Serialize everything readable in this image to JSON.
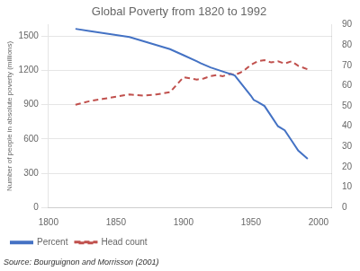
{
  "chart_data": {
    "type": "line",
    "title": "Global Poverty from 1820 to 1992",
    "y_label": "Number of people in absolute poverty (millions)",
    "annotations": [
      "Source: Bourguignon and Morrisson (2001)"
    ],
    "xlim": [
      1800,
      2010
    ],
    "xticks": [
      1800,
      1850,
      1900,
      1950,
      2000
    ],
    "ylim": [
      0,
      1600
    ],
    "yticks": [
      0,
      300,
      600,
      900,
      1200,
      1500
    ],
    "y2lim": [
      0,
      90
    ],
    "y2ticks": [
      0,
      10,
      20,
      30,
      40,
      50,
      60,
      70,
      80,
      90
    ],
    "grid": "y",
    "legend": "lower left",
    "series": [
      {
        "name": "Percent",
        "color": "#4472C4",
        "line_style": "solid",
        "axis": "y2",
        "x": [
          1820,
          1830,
          1840,
          1850,
          1860,
          1870,
          1880,
          1890,
          1900,
          1910,
          1913,
          1920,
          1929,
          1938,
          1950,
          1952,
          1955,
          1960,
          1965,
          1970,
          1975,
          1980,
          1985,
          1992
        ],
        "values": [
          88,
          87,
          86,
          85,
          84,
          82,
          80,
          78,
          75,
          72,
          71,
          69,
          67,
          65,
          55,
          53,
          52,
          50,
          45,
          40,
          38,
          33,
          28,
          24
        ]
      },
      {
        "name": "Head count",
        "color": "#C0504D",
        "line_style": "dashed",
        "axis": "y",
        "x": [
          1820,
          1830,
          1840,
          1850,
          1860,
          1870,
          1880,
          1890,
          1900,
          1905,
          1910,
          1915,
          1920,
          1925,
          1929,
          1935,
          1938,
          1942,
          1945,
          1950,
          1955,
          1960,
          1965,
          1970,
          1975,
          1980,
          1985,
          1992
        ],
        "values": [
          900,
          930,
          950,
          970,
          990,
          980,
          990,
          1010,
          1140,
          1130,
          1120,
          1130,
          1150,
          1160,
          1150,
          1170,
          1160,
          1180,
          1200,
          1250,
          1280,
          1290,
          1270,
          1280,
          1260,
          1280,
          1240,
          1210
        ]
      }
    ]
  }
}
